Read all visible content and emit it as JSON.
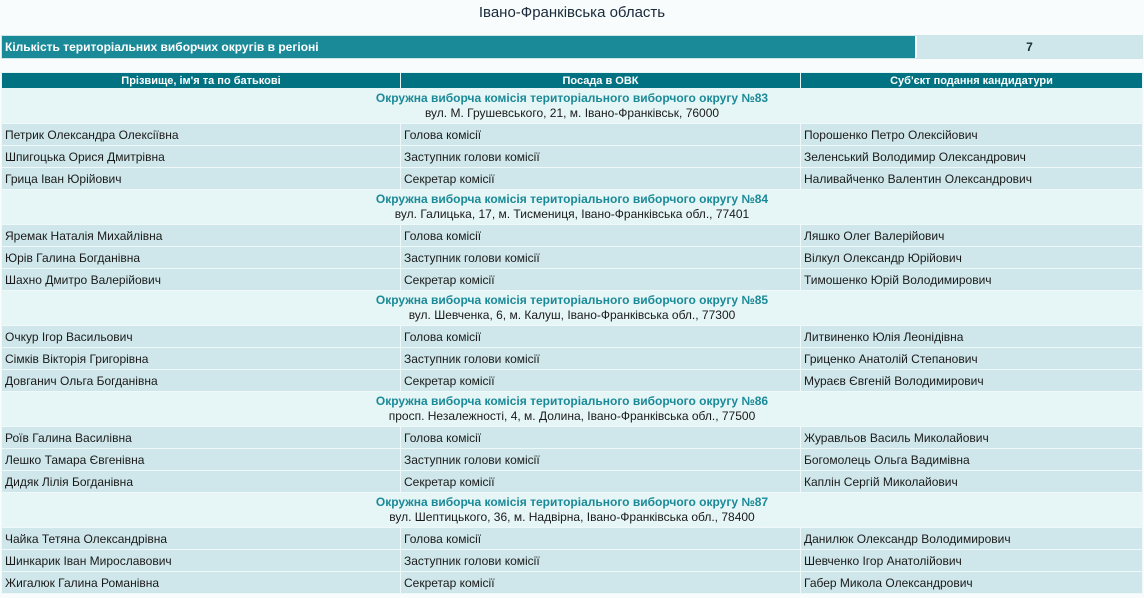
{
  "title": "Івано-Франківська область",
  "count": {
    "label": "Кількість територіальних виборчих округів в регіоні",
    "value": "7"
  },
  "headers": [
    "Прізвище, ім'я та по батькові",
    "Посада в ОВК",
    "Суб'єкт подання кандидатури"
  ],
  "groups": [
    {
      "name": "Окружна виборча комісія територіального виборчого округу №83",
      "address": "вул. М. Грушевського, 21, м. Івано-Франківськ, 76000",
      "rows": [
        [
          "Петрик Олександра Олексіївна",
          "Голова комісії",
          "Порошенко Петро Олексійович"
        ],
        [
          "Шпигоцька Орися Дмитрівна",
          "Заступник голови комісії",
          "Зеленський Володимир Олександрович"
        ],
        [
          "Грица Іван Юрійович",
          "Секретар комісії",
          "Наливайченко Валентин Олександрович"
        ]
      ]
    },
    {
      "name": "Окружна виборча комісія територіального виборчого округу №84",
      "address": "вул. Галицька, 17, м. Тисмениця, Івано-Франківська обл., 77401",
      "rows": [
        [
          "Яремак Наталія Михайлівна",
          "Голова комісії",
          "Ляшко Олег Валерійович"
        ],
        [
          "Юрів Галина Богданівна",
          "Заступник голови комісії",
          "Вілкул Олександр Юрійович"
        ],
        [
          "Шахно Дмитро Валерійович",
          "Секретар комісії",
          "Тимошенко Юрій Володимирович"
        ]
      ]
    },
    {
      "name": "Окружна виборча комісія територіального виборчого округу №85",
      "address": "вул. Шевченка, 6, м. Калуш, Івано-Франківська обл., 77300",
      "rows": [
        [
          "Очкур Ігор Васильович",
          "Голова комісії",
          "Литвиненко Юлія Леонідівна"
        ],
        [
          "Сімків Вікторія Григорівна",
          "Заступник голови комісії",
          "Гриценко Анатолій Степанович"
        ],
        [
          "Довганич Ольга Богданівна",
          "Секретар комісії",
          "Мураєв Євгеній Володимирович"
        ]
      ]
    },
    {
      "name": "Окружна виборча комісія територіального виборчого округу №86",
      "address": "просп. Незалежності, 4, м. Долина, Івано-Франківська обл., 77500",
      "rows": [
        [
          "Роїв Галина Василівна",
          "Голова комісії",
          "Журавльов Василь Миколайович"
        ],
        [
          "Лешко Тамара Євгенівна",
          "Заступник голови комісії",
          "Богомолець Ольга Вадимівна"
        ],
        [
          "Дидяк Лілія Богданівна",
          "Секретар комісії",
          "Каплін Сергій Миколайович"
        ]
      ]
    },
    {
      "name": "Окружна виборча комісія територіального виборчого округу №87",
      "address": "вул. Шептицького, 36, м. Надвірна, Івано-Франківська обл., 78400",
      "rows": [
        [
          "Чайка Тетяна Олександрівна",
          "Голова комісії",
          "Данилюк Олександр Володимирович"
        ],
        [
          "Шинкарик Іван Мирославович",
          "Заступник голови комісії",
          "Шевченко Ігор Анатолійович"
        ],
        [
          "Жигалюк Галина Романівна",
          "Секретар комісії",
          "Габер Микола Олександрович"
        ]
      ]
    }
  ]
}
